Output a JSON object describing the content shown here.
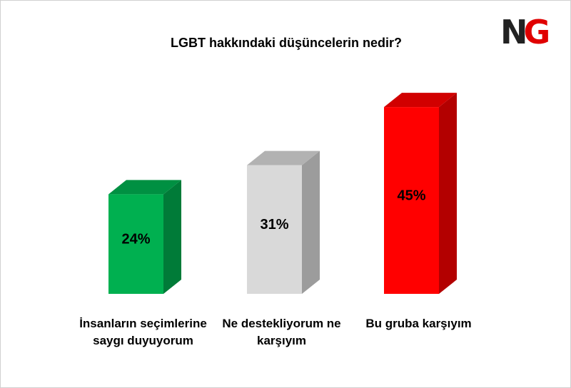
{
  "logo": "NG",
  "chart_data": {
    "type": "bar3d",
    "title": "LGBT hakkındaki düşüncelerin nedir?",
    "categories": [
      "İnsanların seçimlerine saygı duyuyorum",
      "Ne destekliyorum ne karşıyım",
      "Bu gruba karşıyım"
    ],
    "values": [
      24,
      31,
      45
    ],
    "value_labels": [
      "24%",
      "31%",
      "45%"
    ],
    "colors": [
      "#00b050",
      "#d9d9d9",
      "#ff0000"
    ]
  }
}
